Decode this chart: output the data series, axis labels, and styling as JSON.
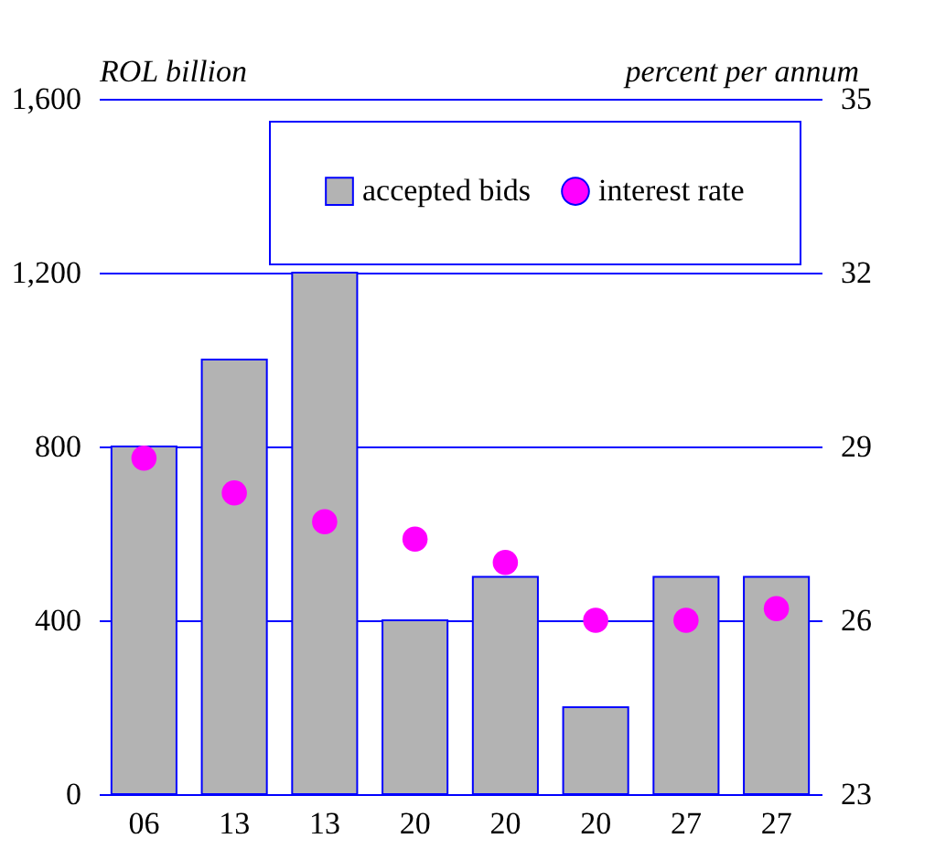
{
  "chart_data": {
    "type": "bar",
    "ylabel": "ROL billion",
    "y2label": "percent per annum",
    "categories": [
      "06",
      "13",
      "13",
      "20",
      "20",
      "20",
      "27",
      "27"
    ],
    "series": [
      {
        "name": "accepted bids",
        "color": "#b3b3b3",
        "values": [
          800,
          1000,
          1200,
          400,
          500,
          200,
          500,
          500
        ]
      },
      {
        "name": "interest rate",
        "type": "scatter",
        "axis": "y2",
        "color": "#ff00ff",
        "marker": "circle",
        "values": [
          28.8,
          28.2,
          27.7,
          27.4,
          27.0,
          26.0,
          26.0,
          26.2
        ]
      }
    ],
    "ylim": [
      0,
      1600
    ],
    "yticks": [
      0,
      400,
      800,
      {
        "value": 1200,
        "label": "1,200"
      },
      {
        "value": 1600,
        "label": "1,600"
      }
    ],
    "y2lim": [
      23,
      35
    ],
    "y2ticks": [
      23,
      26,
      29,
      32,
      35
    ],
    "grid": "y",
    "legend": "top right"
  }
}
